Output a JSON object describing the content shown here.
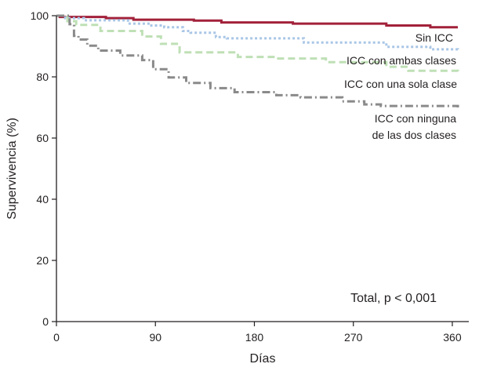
{
  "chart_data": {
    "type": "line",
    "subtype": "kaplan-meier-step",
    "title": "",
    "xlabel": "Días",
    "ylabel": "Supervivencia (%)",
    "xlim": [
      0,
      375
    ],
    "ylim": [
      0,
      100
    ],
    "xticks": [
      0,
      90,
      180,
      270,
      360
    ],
    "yticks": [
      0,
      20,
      40,
      60,
      80,
      100
    ],
    "grid": false,
    "annotation": "Total, p < 0,001",
    "series": [
      {
        "name": "Sin ICC",
        "color": "#a2213a",
        "dash": "solid",
        "points": [
          [
            0,
            100
          ],
          [
            3,
            99.6
          ],
          [
            30,
            99.6
          ],
          [
            45,
            99.2
          ],
          [
            70,
            98.7
          ],
          [
            125,
            98.4
          ],
          [
            150,
            97.8
          ],
          [
            215,
            97.4
          ],
          [
            300,
            96.8
          ],
          [
            340,
            96.2
          ],
          [
            365,
            96.2
          ]
        ]
      },
      {
        "name": "ICC con ambas clases",
        "color": "#a9c6e6",
        "dash": "dotted",
        "points": [
          [
            0,
            100
          ],
          [
            8,
            99.2
          ],
          [
            25,
            98.5
          ],
          [
            65,
            97.4
          ],
          [
            85,
            96.8
          ],
          [
            98,
            96.2
          ],
          [
            115,
            95.0
          ],
          [
            122,
            94.4
          ],
          [
            145,
            93.0
          ],
          [
            155,
            92.6
          ],
          [
            225,
            91.2
          ],
          [
            300,
            89.8
          ],
          [
            340,
            89.0
          ],
          [
            365,
            88.4
          ]
        ]
      },
      {
        "name": "ICC con una sola clase",
        "color": "#bfe0b6",
        "dash": "dashed",
        "points": [
          [
            0,
            100
          ],
          [
            10,
            98.2
          ],
          [
            18,
            97.0
          ],
          [
            40,
            95.0
          ],
          [
            78,
            93.2
          ],
          [
            95,
            90.8
          ],
          [
            112,
            88.0
          ],
          [
            165,
            86.5
          ],
          [
            200,
            86.0
          ],
          [
            245,
            84.8
          ],
          [
            300,
            83.3
          ],
          [
            320,
            82.0
          ],
          [
            365,
            81.0
          ]
        ]
      },
      {
        "name": "ICC con ninguna de las dos clases",
        "label_lines": [
          "ICC con ninguna",
          "de las dos clases"
        ],
        "color": "#8a8a8a",
        "dash": "dashdot",
        "points": [
          [
            0,
            100
          ],
          [
            12,
            97.2
          ],
          [
            16,
            93.4
          ],
          [
            20,
            92.2
          ],
          [
            28,
            90.2
          ],
          [
            38,
            88.6
          ],
          [
            58,
            87.0
          ],
          [
            78,
            85.5
          ],
          [
            88,
            82.5
          ],
          [
            102,
            79.8
          ],
          [
            118,
            78.0
          ],
          [
            140,
            76.3
          ],
          [
            162,
            75.0
          ],
          [
            200,
            74.0
          ],
          [
            222,
            73.3
          ],
          [
            260,
            72.0
          ],
          [
            280,
            71.0
          ],
          [
            295,
            70.5
          ],
          [
            365,
            70.0
          ]
        ]
      }
    ]
  }
}
